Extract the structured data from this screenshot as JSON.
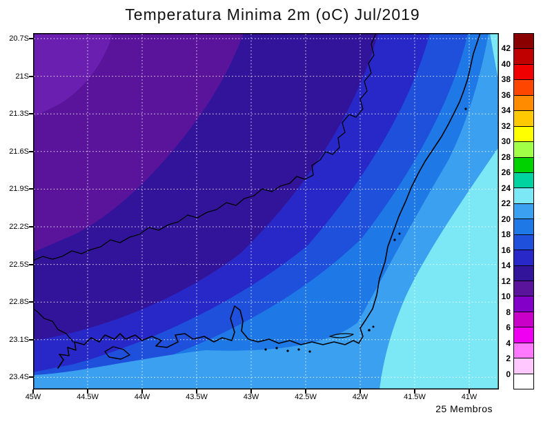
{
  "title": "Temperatura Minima 2m (oC) Jul/2019",
  "footer": {
    "members_label": "25 Membros"
  },
  "axes": {
    "y_ticks": [
      "20.7S",
      "21S",
      "21.3S",
      "21.6S",
      "21.9S",
      "22.2S",
      "22.5S",
      "22.8S",
      "23.1S",
      "23.4S"
    ],
    "x_ticks": [
      "45W",
      "44.5W",
      "44W",
      "43.5W",
      "43W",
      "42.5W",
      "42W",
      "41.5W",
      "41W"
    ]
  },
  "colorbar": {
    "labels_top_to_bottom": [
      "42",
      "40",
      "38",
      "36",
      "34",
      "32",
      "30",
      "28",
      "26",
      "24",
      "22",
      "20",
      "18",
      "16",
      "14",
      "12",
      "10",
      "8",
      "6",
      "4",
      "2",
      "0"
    ],
    "colors_top_to_bottom": [
      "#8a0000",
      "#c00000",
      "#f00000",
      "#ff4600",
      "#ff8c00",
      "#ffc800",
      "#ffff00",
      "#a0ff46",
      "#00d200",
      "#00d2a0",
      "#7ce8f5",
      "#3ca0f0",
      "#1e78e6",
      "#1e50dc",
      "#2828c8",
      "#32149b",
      "#5a149b",
      "#8200c8",
      "#c800c8",
      "#f000f0",
      "#ff78ff",
      "#ffc8ff",
      "#ffffff"
    ]
  },
  "palette": {
    "band_8_10": "#6b1fb0",
    "band_10_12": "#5a149b",
    "band_12_14": "#32149b",
    "band_14_16": "#2828c8",
    "band_16_18": "#1e50dc",
    "band_18_20": "#1e78e6",
    "band_20_22": "#3ca0f0",
    "band_22_24": "#7ce8f5",
    "coastline": "#000000",
    "grid": "#ffffff",
    "frame": "#000000"
  },
  "chart_data": {
    "type": "heatmap",
    "title": "Temperatura Minima 2m (oC) Jul/2019",
    "xlabel": "",
    "ylabel": "",
    "units": "oC",
    "x": [
      "45W",
      "44.5W",
      "44W",
      "43.5W",
      "43W",
      "42.5W",
      "42W",
      "41.5W",
      "41W"
    ],
    "y": [
      "20.7S",
      "21S",
      "21.3S",
      "21.6S",
      "21.9S",
      "22.2S",
      "22.5S",
      "22.8S",
      "23.1S",
      "23.4S"
    ],
    "values_degC": [
      [
        11,
        12,
        13,
        13,
        14,
        15,
        16,
        17,
        19
      ],
      [
        11,
        12,
        13,
        13,
        14,
        15,
        16,
        17,
        19
      ],
      [
        11,
        12,
        13,
        14,
        14,
        15,
        16,
        17,
        19
      ],
      [
        12,
        12,
        13,
        14,
        15,
        15,
        16,
        17,
        19
      ],
      [
        12,
        13,
        13,
        14,
        15,
        16,
        17,
        18,
        19
      ],
      [
        13,
        13,
        14,
        15,
        15,
        16,
        17,
        18,
        20
      ],
      [
        13,
        14,
        15,
        16,
        16,
        17,
        18,
        19,
        20
      ],
      [
        14,
        15,
        16,
        17,
        17,
        18,
        19,
        20,
        21
      ],
      [
        16,
        17,
        18,
        19,
        19,
        20,
        21,
        22,
        22
      ],
      [
        18,
        19,
        20,
        20,
        21,
        21,
        22,
        22,
        23
      ]
    ],
    "levels": [
      0,
      2,
      4,
      6,
      8,
      10,
      12,
      14,
      16,
      18,
      20,
      22,
      24,
      26,
      28,
      30,
      32,
      34,
      36,
      38,
      40,
      42
    ],
    "legend_position": "right",
    "grid": true,
    "annotation": "25 Membros"
  }
}
